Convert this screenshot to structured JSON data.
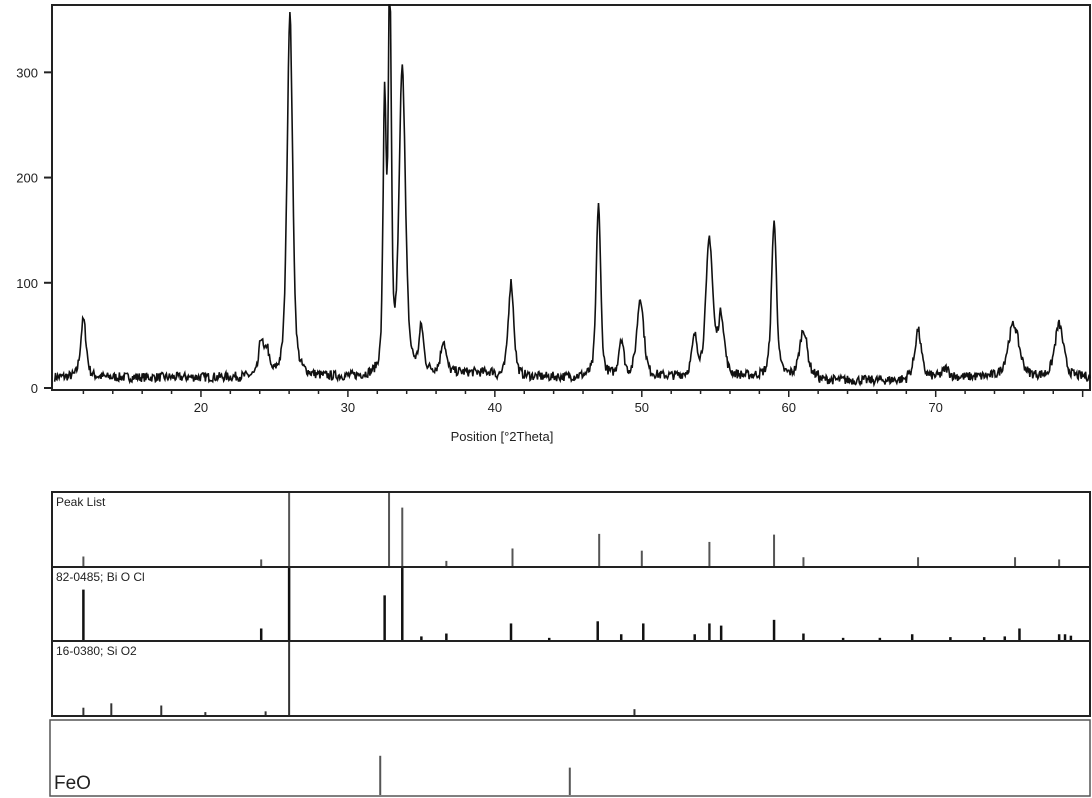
{
  "chart_data": [
    {
      "type": "line",
      "xlabel": "Position [°2Theta]",
      "ylabel": "",
      "xlim": [
        10,
        80.5
      ],
      "ylim": [
        0,
        364
      ],
      "x_ticks": [
        20,
        30,
        40,
        50,
        60,
        70
      ],
      "y_ticks": [
        0,
        100,
        200,
        300
      ],
      "grid": false,
      "line_color": "#111111",
      "background_intensity": 10,
      "peaks": [
        {
          "two_theta": 12.0,
          "intensity": 55,
          "fwhm": 0.45
        },
        {
          "two_theta": 24.1,
          "intensity": 35,
          "fwhm": 0.35
        },
        {
          "two_theta": 24.5,
          "intensity": 25,
          "fwhm": 0.3
        },
        {
          "two_theta": 26.05,
          "intensity": 345,
          "fwhm": 0.45
        },
        {
          "two_theta": 32.5,
          "intensity": 255,
          "fwhm": 0.25
        },
        {
          "two_theta": 32.85,
          "intensity": 364,
          "fwhm": 0.25
        },
        {
          "two_theta": 33.7,
          "intensity": 290,
          "fwhm": 0.5
        },
        {
          "two_theta": 35.0,
          "intensity": 40,
          "fwhm": 0.35
        },
        {
          "two_theta": 36.5,
          "intensity": 30,
          "fwhm": 0.4
        },
        {
          "two_theta": 41.1,
          "intensity": 90,
          "fwhm": 0.45
        },
        {
          "two_theta": 47.05,
          "intensity": 165,
          "fwhm": 0.35
        },
        {
          "two_theta": 48.6,
          "intensity": 35,
          "fwhm": 0.4
        },
        {
          "two_theta": 49.9,
          "intensity": 75,
          "fwhm": 0.55
        },
        {
          "two_theta": 53.6,
          "intensity": 35,
          "fwhm": 0.45
        },
        {
          "two_theta": 54.6,
          "intensity": 130,
          "fwhm": 0.55
        },
        {
          "two_theta": 55.4,
          "intensity": 55,
          "fwhm": 0.5
        },
        {
          "two_theta": 59.0,
          "intensity": 148,
          "fwhm": 0.4
        },
        {
          "two_theta": 61.0,
          "intensity": 45,
          "fwhm": 0.6
        },
        {
          "two_theta": 68.8,
          "intensity": 45,
          "fwhm": 0.5
        },
        {
          "two_theta": 70.7,
          "intensity": 8,
          "fwhm": 0.5
        },
        {
          "two_theta": 75.3,
          "intensity": 50,
          "fwhm": 0.9
        },
        {
          "two_theta": 78.4,
          "intensity": 50,
          "fwhm": 0.7
        }
      ]
    },
    {
      "type": "bar",
      "title": "Peak List",
      "xlim": [
        10,
        80.5
      ],
      "bar_color": "#555555",
      "sticks": [
        [
          12.0,
          0.13
        ],
        [
          24.1,
          0.09
        ],
        [
          26.0,
          1.0
        ],
        [
          32.8,
          1.0
        ],
        [
          33.7,
          0.8
        ],
        [
          36.7,
          0.07
        ],
        [
          41.2,
          0.24
        ],
        [
          47.1,
          0.44
        ],
        [
          50.0,
          0.21
        ],
        [
          54.6,
          0.33
        ],
        [
          59.0,
          0.43
        ],
        [
          61.0,
          0.12
        ],
        [
          68.8,
          0.12
        ],
        [
          75.4,
          0.12
        ],
        [
          78.4,
          0.09
        ]
      ]
    },
    {
      "type": "bar",
      "title": "82-0485; Bi O Cl",
      "xlim": [
        10,
        80.5
      ],
      "bar_color": "#111111",
      "sticks": [
        [
          12.0,
          0.7
        ],
        [
          24.1,
          0.16
        ],
        [
          26.0,
          1.0
        ],
        [
          32.5,
          0.62
        ],
        [
          33.7,
          1.0
        ],
        [
          35.0,
          0.05
        ],
        [
          36.7,
          0.09
        ],
        [
          41.1,
          0.23
        ],
        [
          43.7,
          0.03
        ],
        [
          47.0,
          0.26
        ],
        [
          48.6,
          0.08
        ],
        [
          50.1,
          0.23
        ],
        [
          53.6,
          0.08
        ],
        [
          54.6,
          0.23
        ],
        [
          55.4,
          0.2
        ],
        [
          59.0,
          0.28
        ],
        [
          61.0,
          0.09
        ],
        [
          63.7,
          0.03
        ],
        [
          66.2,
          0.03
        ],
        [
          68.4,
          0.08
        ],
        [
          71.0,
          0.04
        ],
        [
          73.3,
          0.04
        ],
        [
          74.7,
          0.05
        ],
        [
          75.7,
          0.16
        ],
        [
          78.4,
          0.08
        ],
        [
          78.8,
          0.08
        ],
        [
          79.2,
          0.06
        ]
      ]
    },
    {
      "type": "bar",
      "title": "16-0380; Si O2",
      "xlim": [
        10,
        80.5
      ],
      "bar_color": "#333333",
      "sticks": [
        [
          12.0,
          0.1
        ],
        [
          13.9,
          0.16
        ],
        [
          17.3,
          0.13
        ],
        [
          20.3,
          0.04
        ],
        [
          24.4,
          0.05
        ],
        [
          26.0,
          1.0
        ],
        [
          49.5,
          0.08
        ]
      ]
    },
    {
      "type": "bar",
      "title": "FeO",
      "xlim": [
        10,
        80.5
      ],
      "bar_color": "#555555",
      "sticks": [
        [
          32.2,
          0.53
        ],
        [
          45.1,
          0.37
        ]
      ]
    }
  ]
}
